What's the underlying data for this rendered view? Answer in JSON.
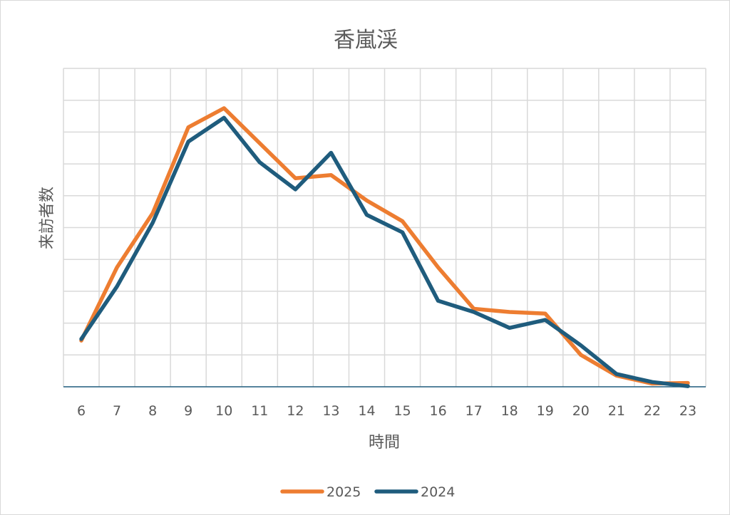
{
  "chart_data": {
    "type": "line",
    "title": "香嵐渓",
    "xlabel": "時間",
    "ylabel": "来訪者数",
    "categories": [
      "6",
      "7",
      "8",
      "9",
      "10",
      "11",
      "12",
      "13",
      "14",
      "15",
      "16",
      "17",
      "18",
      "19",
      "20",
      "21",
      "22",
      "23"
    ],
    "ylim": [
      0,
      100
    ],
    "grid": true,
    "y_tick_labels_shown": false,
    "legend_position": "bottom",
    "series": [
      {
        "name": "2025",
        "color": "#ED7D31",
        "values": [
          14.5,
          37.5,
          54.5,
          81.5,
          87.5,
          76.5,
          65.5,
          66.5,
          58.5,
          52,
          37.5,
          24.5,
          23.5,
          23,
          10,
          3.5,
          1,
          1.2
        ]
      },
      {
        "name": "2024",
        "color": "#1F5C7D",
        "values": [
          15,
          31.5,
          51.5,
          77,
          84.5,
          70.5,
          62,
          73.5,
          54,
          48.5,
          27,
          23.5,
          18.5,
          21,
          13,
          4,
          1.5,
          0.2
        ]
      }
    ]
  }
}
